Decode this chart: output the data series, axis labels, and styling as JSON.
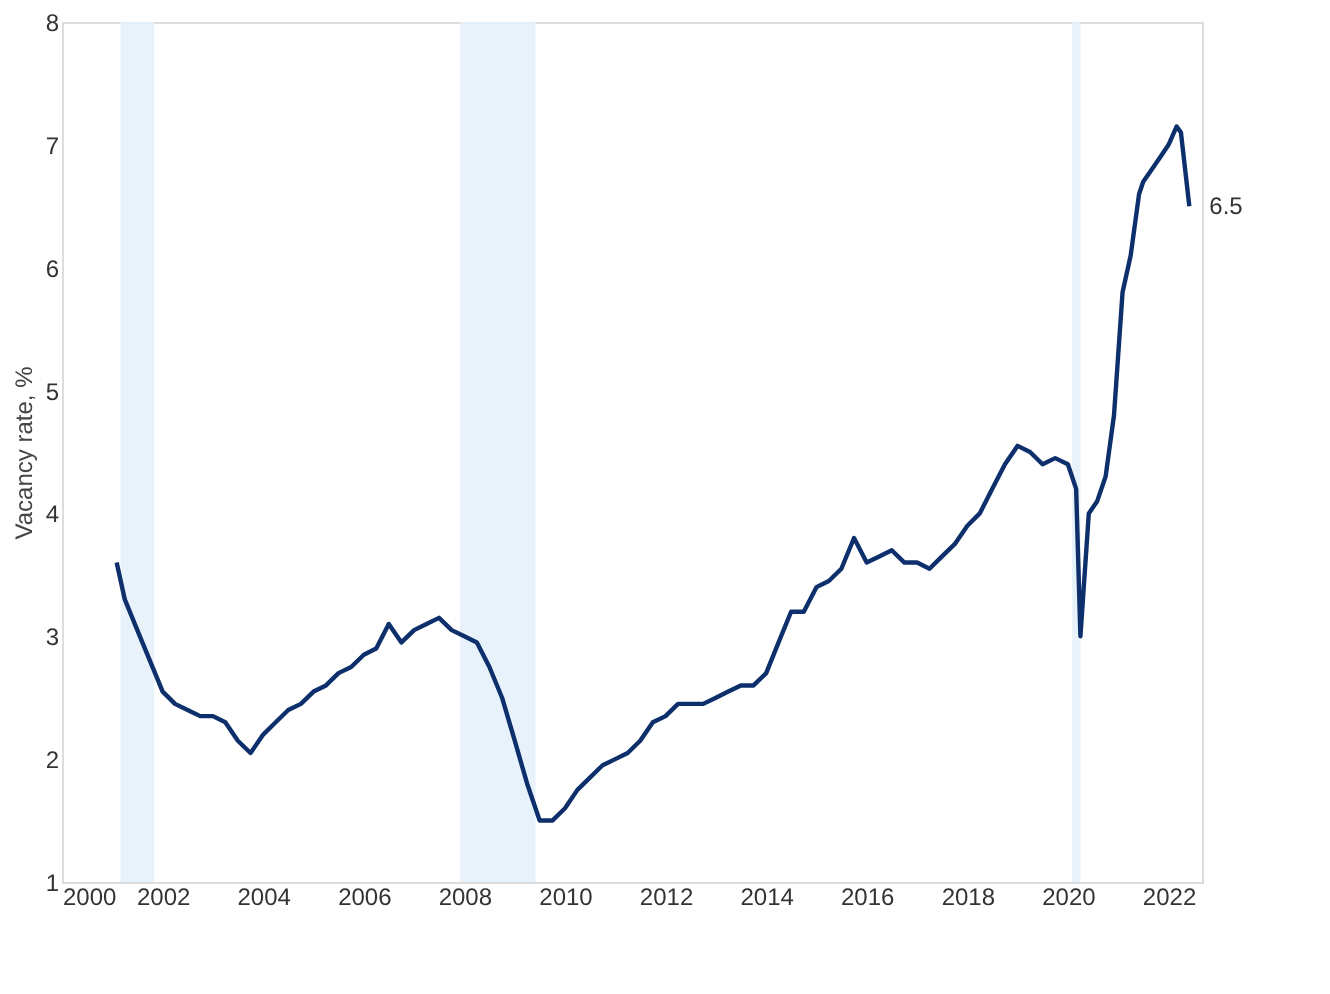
{
  "chart_data": {
    "type": "line",
    "ylabel": "Vacancy rate, %",
    "x": [
      "2001-02",
      "2001-04",
      "2001-07",
      "2001-10",
      "2002-01",
      "2002-04",
      "2002-07",
      "2002-10",
      "2003-01",
      "2003-04",
      "2003-07",
      "2003-10",
      "2004-01",
      "2004-04",
      "2004-07",
      "2004-10",
      "2005-01",
      "2005-04",
      "2005-07",
      "2005-10",
      "2006-01",
      "2006-04",
      "2006-07",
      "2006-10",
      "2007-01",
      "2007-04",
      "2007-07",
      "2007-10",
      "2008-01",
      "2008-04",
      "2008-07",
      "2008-10",
      "2009-01",
      "2009-04",
      "2009-07",
      "2009-10",
      "2010-01",
      "2010-04",
      "2010-07",
      "2010-10",
      "2011-01",
      "2011-04",
      "2011-07",
      "2011-10",
      "2012-01",
      "2012-04",
      "2012-07",
      "2012-10",
      "2013-01",
      "2013-04",
      "2013-07",
      "2013-10",
      "2014-01",
      "2014-04",
      "2014-07",
      "2014-10",
      "2015-01",
      "2015-04",
      "2015-07",
      "2015-10",
      "2016-01",
      "2016-04",
      "2016-07",
      "2016-10",
      "2017-01",
      "2017-04",
      "2017-07",
      "2017-10",
      "2018-01",
      "2018-04",
      "2018-07",
      "2018-10",
      "2019-01",
      "2019-04",
      "2019-07",
      "2019-10",
      "2020-01",
      "2020-03",
      "2020-04",
      "2020-06",
      "2020-08",
      "2020-10",
      "2020-12",
      "2021-02",
      "2021-04",
      "2021-06",
      "2021-07",
      "2021-09",
      "2021-11",
      "2022-01",
      "2022-03",
      "2022-04",
      "2022-06"
    ],
    "series": [
      {
        "color": "#0d2f6b",
        "values": [
          3.6,
          3.3,
          3.05,
          2.8,
          2.55,
          2.45,
          2.4,
          2.35,
          2.35,
          2.3,
          2.15,
          2.05,
          2.2,
          2.3,
          2.4,
          2.45,
          2.55,
          2.6,
          2.7,
          2.75,
          2.85,
          2.9,
          3.1,
          2.95,
          3.05,
          3.1,
          3.15,
          3.05,
          3.0,
          2.95,
          2.75,
          2.5,
          2.15,
          1.8,
          1.5,
          1.5,
          1.6,
          1.75,
          1.85,
          1.95,
          2.0,
          2.05,
          2.15,
          2.3,
          2.35,
          2.45,
          2.45,
          2.45,
          2.5,
          2.55,
          2.6,
          2.6,
          2.7,
          2.95,
          3.2,
          3.2,
          3.4,
          3.45,
          3.55,
          3.8,
          3.6,
          3.65,
          3.7,
          3.6,
          3.6,
          3.55,
          3.65,
          3.75,
          3.9,
          4.0,
          4.2,
          4.4,
          4.55,
          4.5,
          4.4,
          4.45,
          4.4,
          4.2,
          3.0,
          4.0,
          4.1,
          4.3,
          4.8,
          5.8,
          6.1,
          6.6,
          6.7,
          6.8,
          6.9,
          7.0,
          7.15,
          7.1,
          6.5
        ]
      }
    ],
    "xlim": [
      "2000-01",
      "2022-09"
    ],
    "xticks": [
      "2000",
      "2002",
      "2004",
      "2006",
      "2008",
      "2010",
      "2012",
      "2014",
      "2016",
      "2018",
      "2020",
      "2022"
    ],
    "ylim": [
      1,
      8
    ],
    "yticks": [
      1,
      2,
      3,
      4,
      5,
      6,
      7,
      8
    ],
    "bands": [
      {
        "axis": "x",
        "from": "2001-03",
        "to": "2001-11",
        "color": "#e6f1fb"
      },
      {
        "axis": "x",
        "from": "2007-12",
        "to": "2009-06",
        "color": "#e6f1fb"
      },
      {
        "axis": "x",
        "from": "2020-02",
        "to": "2020-04",
        "color": "#e6f1fb"
      }
    ],
    "annotations": [
      {
        "text": "6.5",
        "x": "2022-06",
        "y": 6.5
      }
    ],
    "grid": false,
    "legend": false
  }
}
